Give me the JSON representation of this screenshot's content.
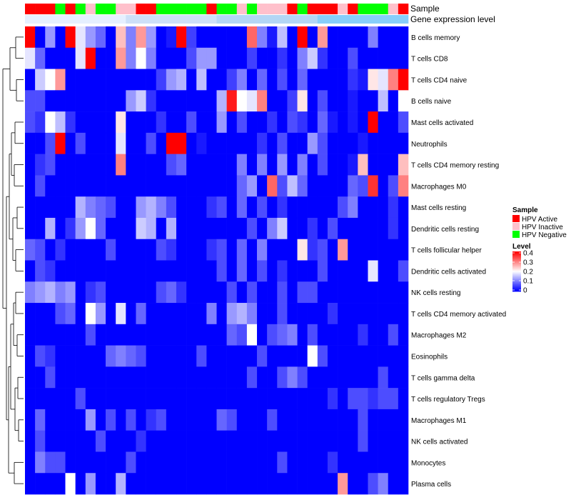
{
  "chart_data": {
    "type": "heatmap",
    "annotation_tracks": [
      "Sample",
      "Gene expression level"
    ],
    "sample_colors": {
      "HPV Active": "#FF0000",
      "HPV Inactive": "#FFC0CB",
      "HPV Negative": "#00FF00"
    },
    "sample_groups": [
      "HPV Active",
      "HPV Active",
      "HPV Active",
      "HPV Negative",
      "HPV Active",
      "HPV Negative",
      "HPV Inactive",
      "HPV Negative",
      "HPV Negative",
      "HPV Inactive",
      "HPV Inactive",
      "HPV Active",
      "HPV Active",
      "HPV Negative",
      "HPV Negative",
      "HPV Negative",
      "HPV Negative",
      "HPV Negative",
      "HPV Active",
      "HPV Negative",
      "HPV Negative",
      "HPV Inactive",
      "HPV Negative",
      "HPV Inactive",
      "HPV Inactive",
      "HPV Inactive",
      "HPV Active",
      "HPV Negative",
      "HPV Active",
      "HPV Active",
      "HPV Active",
      "HPV Inactive",
      "HPV Active",
      "HPV Negative",
      "HPV Negative",
      "HPV Negative",
      "HPV Inactive",
      "HPV Active"
    ],
    "gene_expression_colors": [
      "#e6f0ff",
      "#cde0f8",
      "#b3d6f5",
      "#87cefa"
    ],
    "rows": [
      "B cells memory",
      "T cells CD8",
      "T cells CD4 naive",
      "B cells naive",
      "Mast cells activated",
      "Neutrophils",
      "T cells CD4 memory resting",
      "Macrophages M0",
      "Mast cells resting",
      "Dendritic cells resting",
      "T cells follicular helper",
      "Dendritic cells activated",
      "NK cells resting",
      "T cells CD4 memory activated",
      "Macrophages M2",
      "Eosinophils",
      "T cells gamma delta",
      "T cells regulatory  Tregs",
      "Macrophages M1",
      "NK cells activated",
      "Monocytes",
      "Plasma cells"
    ],
    "values": [
      [
        0.4,
        0.0,
        0.12,
        0.0,
        0.42,
        0.18,
        0.12,
        0.08,
        0.0,
        0.25,
        0.1,
        0.28,
        0.12,
        0.0,
        0.02,
        0.45,
        0.05,
        0.0,
        0.0,
        0.0,
        0.0,
        0.0,
        0.32,
        0.1,
        0.02,
        0.15,
        0.0,
        0.45,
        0.0,
        0.28,
        0.0,
        0.0,
        0.0,
        0.0,
        0.1,
        0.0,
        0.0,
        0.0
      ],
      [
        0.18,
        0.08,
        0.0,
        0.0,
        0.0,
        0.18,
        0.42,
        0.0,
        0.0,
        0.28,
        0.1,
        0.2,
        0.1,
        0.0,
        0.0,
        0.0,
        0.06,
        0.12,
        0.12,
        0.0,
        0.0,
        0.0,
        0.05,
        0.0,
        0.0,
        0.04,
        0.0,
        0.1,
        0.16,
        0.04,
        0.0,
        0.0,
        0.06,
        0.0,
        0.0,
        0.0,
        0.0,
        0.0
      ],
      [
        0.0,
        0.16,
        0.2,
        0.28,
        0.0,
        0.0,
        0.0,
        0.0,
        0.0,
        0.0,
        0.0,
        0.0,
        0.0,
        0.05,
        0.12,
        0.14,
        0.0,
        0.15,
        0.0,
        0.0,
        0.05,
        0.1,
        0.0,
        0.08,
        0.0,
        0.06,
        0.0,
        0.08,
        0.0,
        0.0,
        0.0,
        0.0,
        0.04,
        0.02,
        0.22,
        0.18,
        0.3,
        0.4
      ],
      [
        0.06,
        0.06,
        0.0,
        0.0,
        0.0,
        0.0,
        0.0,
        0.0,
        0.0,
        0.0,
        0.12,
        0.16,
        0.04,
        0.0,
        0.0,
        0.0,
        0.0,
        0.0,
        0.0,
        0.14,
        0.38,
        0.2,
        0.18,
        0.3,
        0.0,
        0.0,
        0.05,
        0.22,
        0.0,
        0.06,
        0.0,
        0.0,
        0.02,
        0.0,
        0.0,
        0.15,
        0.0,
        0.2
      ],
      [
        0.06,
        0.04,
        0.2,
        0.15,
        0.04,
        0.0,
        0.0,
        0.0,
        0.0,
        0.22,
        0.0,
        0.0,
        0.0,
        0.04,
        0.0,
        0.0,
        0.06,
        0.0,
        0.0,
        0.12,
        0.0,
        0.06,
        0.0,
        0.0,
        0.04,
        0.0,
        0.06,
        0.04,
        0.0,
        0.08,
        0.02,
        0.0,
        0.02,
        0.0,
        0.42,
        0.0,
        0.0,
        0.06
      ],
      [
        0.0,
        0.0,
        0.06,
        0.42,
        0.0,
        0.06,
        0.0,
        0.0,
        0.0,
        0.18,
        0.0,
        0.0,
        0.06,
        0.0,
        0.4,
        0.44,
        0.0,
        0.02,
        0.0,
        0.0,
        0.0,
        0.0,
        0.0,
        0.04,
        0.0,
        0.06,
        0.0,
        0.0,
        0.12,
        0.06,
        0.0,
        0.0,
        0.0,
        0.02,
        0.0,
        0.0,
        0.0,
        0.0
      ],
      [
        0.0,
        0.04,
        0.06,
        0.0,
        0.0,
        0.0,
        0.0,
        0.0,
        0.0,
        0.3,
        0.0,
        0.0,
        0.0,
        0.0,
        0.06,
        0.08,
        0.0,
        0.0,
        0.0,
        0.0,
        0.0,
        0.1,
        0.0,
        0.1,
        0.0,
        0.12,
        0.0,
        0.1,
        0.0,
        0.06,
        0.0,
        0.0,
        0.02,
        0.25,
        0.0,
        0.0,
        0.0,
        0.25
      ],
      [
        0.0,
        0.06,
        0.0,
        0.0,
        0.0,
        0.0,
        0.0,
        0.0,
        0.0,
        0.0,
        0.0,
        0.0,
        0.0,
        0.0,
        0.0,
        0.0,
        0.0,
        0.0,
        0.0,
        0.0,
        0.0,
        0.08,
        0.12,
        0.0,
        0.32,
        0.06,
        0.15,
        0.08,
        0.0,
        0.0,
        0.0,
        0.0,
        0.08,
        0.06,
        0.36,
        0.0,
        0.06,
        0.3
      ],
      [
        0.0,
        0.0,
        0.0,
        0.0,
        0.0,
        0.14,
        0.1,
        0.08,
        0.06,
        0.0,
        0.0,
        0.12,
        0.14,
        0.1,
        0.06,
        0.0,
        0.0,
        0.0,
        0.04,
        0.06,
        0.0,
        0.08,
        0.0,
        0.06,
        0.0,
        0.04,
        0.0,
        0.0,
        0.0,
        0.0,
        0.0,
        0.06,
        0.1,
        0.0,
        0.0,
        0.0,
        0.04,
        0.0
      ],
      [
        0.0,
        0.0,
        0.14,
        0.0,
        0.04,
        0.12,
        0.2,
        0.08,
        0.0,
        0.0,
        0.0,
        0.16,
        0.14,
        0.0,
        0.14,
        0.0,
        0.0,
        0.0,
        0.0,
        0.0,
        0.0,
        0.0,
        0.06,
        0.0,
        0.1,
        0.16,
        0.0,
        0.0,
        0.04,
        0.0,
        0.06,
        0.0,
        0.0,
        0.0,
        0.0,
        0.0,
        0.04,
        0.0
      ],
      [
        0.08,
        0.06,
        0.0,
        0.04,
        0.0,
        0.0,
        0.0,
        0.0,
        0.06,
        0.0,
        0.0,
        0.0,
        0.0,
        0.06,
        0.04,
        0.0,
        0.0,
        0.0,
        0.04,
        0.06,
        0.0,
        0.08,
        0.0,
        0.1,
        0.0,
        0.0,
        0.0,
        0.22,
        0.04,
        0.06,
        0.0,
        0.28,
        0.0,
        0.0,
        0.0,
        0.0,
        0.0,
        0.0
      ],
      [
        0.0,
        0.06,
        0.04,
        0.0,
        0.0,
        0.0,
        0.0,
        0.0,
        0.0,
        0.0,
        0.0,
        0.0,
        0.0,
        0.0,
        0.0,
        0.0,
        0.0,
        0.0,
        0.0,
        0.06,
        0.0,
        0.08,
        0.0,
        0.06,
        0.0,
        0.04,
        0.0,
        0.0,
        0.0,
        0.06,
        0.0,
        0.0,
        0.0,
        0.0,
        0.18,
        0.0,
        0.0,
        0.06
      ],
      [
        0.1,
        0.12,
        0.14,
        0.1,
        0.12,
        0.0,
        0.04,
        0.06,
        0.0,
        0.0,
        0.0,
        0.0,
        0.0,
        0.06,
        0.08,
        0.04,
        0.0,
        0.0,
        0.0,
        0.0,
        0.06,
        0.0,
        0.06,
        0.0,
        0.0,
        0.06,
        0.0,
        0.06,
        0.06,
        0.0,
        0.0,
        0.0,
        0.0,
        0.0,
        0.0,
        0.0,
        0.0,
        0.0
      ],
      [
        0.0,
        0.0,
        0.0,
        0.06,
        0.08,
        0.0,
        0.2,
        0.12,
        0.0,
        0.18,
        0.0,
        0.08,
        0.0,
        0.0,
        0.0,
        0.0,
        0.0,
        0.0,
        0.1,
        0.0,
        0.12,
        0.14,
        0.1,
        0.0,
        0.0,
        0.06,
        0.0,
        0.0,
        0.0,
        0.0,
        0.04,
        0.0,
        0.0,
        0.0,
        0.0,
        0.0,
        0.0,
        0.0
      ],
      [
        0.0,
        0.0,
        0.0,
        0.0,
        0.0,
        0.0,
        0.06,
        0.0,
        0.0,
        0.0,
        0.0,
        0.0,
        0.0,
        0.0,
        0.0,
        0.0,
        0.0,
        0.0,
        0.0,
        0.0,
        0.08,
        0.06,
        0.2,
        0.0,
        0.06,
        0.08,
        0.1,
        0.0,
        0.06,
        0.0,
        0.0,
        0.0,
        0.0,
        0.04,
        0.0,
        0.0,
        0.06,
        0.0
      ],
      [
        0.0,
        0.06,
        0.04,
        0.0,
        0.0,
        0.0,
        0.0,
        0.0,
        0.08,
        0.1,
        0.08,
        0.06,
        0.0,
        0.0,
        0.0,
        0.0,
        0.0,
        0.06,
        0.0,
        0.0,
        0.0,
        0.0,
        0.0,
        0.06,
        0.0,
        0.0,
        0.0,
        0.0,
        0.2,
        0.06,
        0.0,
        0.0,
        0.0,
        0.0,
        0.0,
        0.0,
        0.0,
        0.0
      ],
      [
        0.0,
        0.0,
        0.06,
        0.0,
        0.0,
        0.0,
        0.0,
        0.0,
        0.0,
        0.0,
        0.0,
        0.0,
        0.0,
        0.0,
        0.0,
        0.0,
        0.0,
        0.0,
        0.0,
        0.0,
        0.0,
        0.0,
        0.06,
        0.0,
        0.0,
        0.06,
        0.1,
        0.06,
        0.0,
        0.0,
        0.0,
        0.0,
        0.0,
        0.0,
        0.0,
        0.06,
        0.0,
        0.0
      ],
      [
        0.0,
        0.0,
        0.0,
        0.0,
        0.0,
        0.06,
        0.0,
        0.0,
        0.0,
        0.0,
        0.0,
        0.0,
        0.0,
        0.0,
        0.0,
        0.0,
        0.0,
        0.0,
        0.0,
        0.0,
        0.0,
        0.0,
        0.0,
        0.0,
        0.0,
        0.0,
        0.0,
        0.0,
        0.0,
        0.0,
        0.04,
        0.0,
        0.06,
        0.06,
        0.04,
        0.06,
        0.06,
        0.0
      ],
      [
        0.0,
        0.08,
        0.0,
        0.0,
        0.0,
        0.0,
        0.12,
        0.0,
        0.06,
        0.0,
        0.06,
        0.0,
        0.04,
        0.06,
        0.0,
        0.0,
        0.0,
        0.0,
        0.0,
        0.08,
        0.06,
        0.0,
        0.0,
        0.0,
        0.06,
        0.0,
        0.0,
        0.0,
        0.0,
        0.0,
        0.0,
        0.0,
        0.0,
        0.06,
        0.0,
        0.0,
        0.0,
        0.0
      ],
      [
        0.0,
        0.06,
        0.0,
        0.0,
        0.0,
        0.0,
        0.0,
        0.06,
        0.0,
        0.0,
        0.0,
        0.04,
        0.0,
        0.0,
        0.0,
        0.0,
        0.0,
        0.0,
        0.0,
        0.0,
        0.0,
        0.0,
        0.0,
        0.0,
        0.0,
        0.0,
        0.0,
        0.0,
        0.0,
        0.0,
        0.0,
        0.0,
        0.0,
        0.06,
        0.0,
        0.0,
        0.0,
        0.0
      ],
      [
        0.0,
        0.1,
        0.06,
        0.06,
        0.0,
        0.0,
        0.0,
        0.0,
        0.0,
        0.0,
        0.06,
        0.0,
        0.0,
        0.0,
        0.0,
        0.0,
        0.0,
        0.0,
        0.0,
        0.0,
        0.0,
        0.0,
        0.0,
        0.0,
        0.0,
        0.06,
        0.0,
        0.0,
        0.0,
        0.0,
        0.04,
        0.0,
        0.0,
        0.0,
        0.0,
        0.0,
        0.0,
        0.0
      ],
      [
        0.0,
        0.0,
        0.0,
        0.0,
        0.2,
        0.0,
        0.12,
        0.0,
        0.0,
        0.14,
        0.0,
        0.0,
        0.0,
        0.0,
        0.0,
        0.0,
        0.0,
        0.0,
        0.0,
        0.0,
        0.0,
        0.0,
        0.0,
        0.0,
        0.0,
        0.0,
        0.0,
        0.0,
        0.0,
        0.0,
        0.0,
        0.28,
        0.0,
        0.0,
        0.06,
        0.1,
        0.0,
        0.0
      ]
    ],
    "legend": {
      "sample_title": "Sample",
      "sample_entries": [
        "HPV Active",
        "HPV Inactive",
        "HPV Negative"
      ],
      "level_title": "Level",
      "level_ticks": [
        "0.4",
        "0.3",
        "0.2",
        "0.1",
        "0"
      ],
      "level_range": [
        0,
        0.4
      ],
      "placement": "right"
    },
    "color_scale": {
      "low": "#0000FF",
      "mid": "#FFFFFF",
      "high": "#FF0000"
    },
    "row_dendrogram": true
  }
}
